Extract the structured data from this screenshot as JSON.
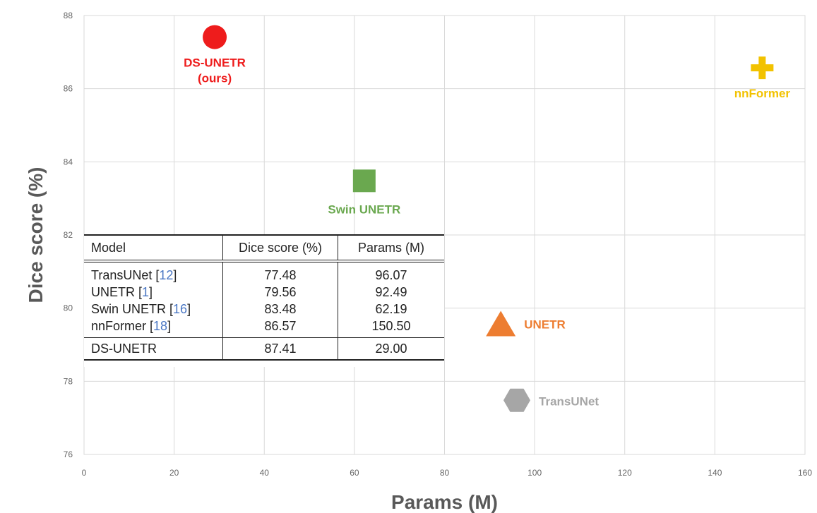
{
  "chart_data": {
    "type": "scatter",
    "xlabel": "Params (M)",
    "ylabel": "Dice score (%)",
    "xlim": [
      0,
      160
    ],
    "ylim": [
      76,
      88
    ],
    "xticks": [
      0,
      20,
      40,
      60,
      80,
      100,
      120,
      140,
      160
    ],
    "yticks": [
      76,
      78,
      80,
      82,
      84,
      86,
      88
    ],
    "grid": true,
    "points": [
      {
        "label": "DS-UNETR\n(ours)",
        "label_lines": [
          "DS-UNETR",
          "(ours)"
        ],
        "x": 29.0,
        "y": 87.41,
        "marker": "circle",
        "color": "#ee1c1c"
      },
      {
        "label": "Swin UNETR",
        "label_lines": [
          "Swin UNETR"
        ],
        "x": 62.19,
        "y": 83.48,
        "marker": "square",
        "color": "#6aa84f"
      },
      {
        "label": "nnFormer",
        "label_lines": [
          "nnFormer"
        ],
        "x": 150.5,
        "y": 86.57,
        "marker": "cross",
        "color": "#f2c200"
      },
      {
        "label": "UNETR",
        "label_lines": [
          "UNETR"
        ],
        "x": 92.49,
        "y": 79.56,
        "marker": "triangle",
        "color": "#ed7d31"
      },
      {
        "label": "TransUNet",
        "label_lines": [
          "TransUNet"
        ],
        "x": 96.07,
        "y": 77.48,
        "marker": "hexagon",
        "color": "#a6a6a6"
      }
    ],
    "table": {
      "headers": [
        "Model",
        "Dice score (%)",
        "Params (M)"
      ],
      "rows": [
        {
          "name": "TransUNet",
          "ref": "12",
          "dice": "77.48",
          "params": "96.07"
        },
        {
          "name": "UNETR",
          "ref": "1",
          "dice": "79.56",
          "params": "92.49"
        },
        {
          "name": "Swin UNETR",
          "ref": "16",
          "dice": "83.48",
          "params": "62.19"
        },
        {
          "name": "nnFormer",
          "ref": "18",
          "dice": "86.57",
          "params": "150.50"
        }
      ],
      "final_row": {
        "name": "DS-UNETR",
        "dice": "87.41",
        "params": "29.00"
      }
    }
  }
}
